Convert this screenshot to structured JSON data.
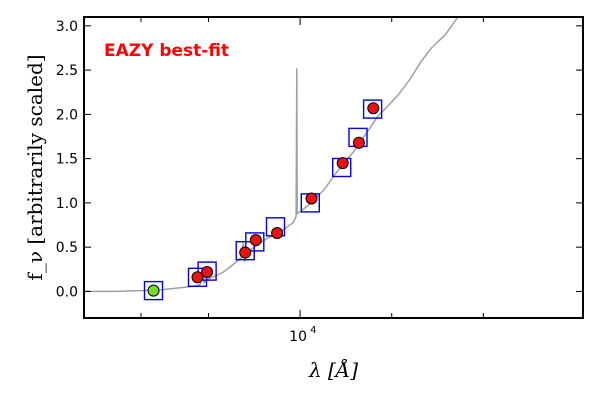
{
  "chart_data": {
    "type": "scatter",
    "title": "",
    "xlabel": "λ [Å]",
    "ylabel": "f_ν [arbitrarily scaled]",
    "x_scale": "log",
    "xlim": [
      1950,
      85000
    ],
    "ylim": [
      -0.3,
      3.1
    ],
    "grid": false,
    "yticks": [
      0.0,
      0.5,
      1.0,
      1.5,
      2.0,
      2.5,
      3.0
    ],
    "ytick_labels": [
      "0.0",
      "0.5",
      "1.0",
      "1.5",
      "2.0",
      "2.5",
      "3.0"
    ],
    "xtick_major": [
      10000
    ],
    "xtick_major_labels": [
      "10"
    ],
    "xtick_major_exponent": "4",
    "xtick_minor": [
      3000,
      5000,
      20000,
      40000
    ],
    "annotation": {
      "text": "EAZY best-fit",
      "color": "#ff0000"
    },
    "colors": {
      "sed_line": "#a0a0a0",
      "model_box": "#0000dd",
      "observed_point": "#ee1111",
      "uv_point": "#77dd22"
    },
    "series": [
      {
        "kind": "line",
        "points": [
          [
            1950,
            0.0
          ],
          [
            2500,
            0.0
          ],
          [
            3000,
            0.01
          ],
          [
            3500,
            0.02
          ],
          [
            4000,
            0.04
          ],
          [
            4500,
            0.06
          ],
          [
            4700,
            0.08
          ],
          [
            4800,
            0.25
          ],
          [
            4830,
            0.1
          ],
          [
            5000,
            0.14
          ],
          [
            5300,
            0.18
          ],
          [
            5600,
            0.22
          ],
          [
            6000,
            0.3
          ],
          [
            6400,
            0.38
          ],
          [
            6500,
            0.55
          ],
          [
            6560,
            0.35
          ],
          [
            6800,
            0.46
          ],
          [
            7200,
            0.52
          ],
          [
            7800,
            0.6
          ],
          [
            8500,
            0.66
          ],
          [
            9000,
            0.72
          ],
          [
            9500,
            0.78
          ],
          [
            9700,
            0.85
          ],
          [
            9750,
            2.52
          ],
          [
            9780,
            0.88
          ],
          [
            10000,
            0.9
          ],
          [
            10500,
            0.96
          ],
          [
            11000,
            1.02
          ],
          [
            12000,
            1.15
          ],
          [
            13000,
            1.32
          ],
          [
            14000,
            1.46
          ],
          [
            15000,
            1.58
          ],
          [
            16000,
            1.72
          ],
          [
            17000,
            1.85
          ],
          [
            18000,
            1.98
          ],
          [
            19500,
            2.1
          ],
          [
            21000,
            2.22
          ],
          [
            23000,
            2.4
          ],
          [
            25000,
            2.6
          ],
          [
            27000,
            2.75
          ],
          [
            30000,
            2.9
          ],
          [
            33000,
            3.1
          ]
        ]
      },
      {
        "kind": "model",
        "points": [
          [
            3300,
            0.01
          ],
          [
            4600,
            0.16
          ],
          [
            4950,
            0.23
          ],
          [
            6600,
            0.46
          ],
          [
            7100,
            0.56
          ],
          [
            8300,
            0.73
          ],
          [
            10800,
            1.0
          ],
          [
            13700,
            1.4
          ],
          [
            15500,
            1.74
          ],
          [
            17300,
            2.06
          ]
        ]
      },
      {
        "kind": "observed",
        "points": [
          [
            4600,
            0.16
          ],
          [
            4950,
            0.22
          ],
          [
            6600,
            0.44
          ],
          [
            7150,
            0.58
          ],
          [
            8400,
            0.66
          ],
          [
            10900,
            1.05
          ],
          [
            13800,
            1.45
          ],
          [
            15600,
            1.68
          ],
          [
            17400,
            2.07
          ]
        ]
      },
      {
        "kind": "uv",
        "points": [
          [
            3300,
            0.01
          ]
        ]
      }
    ]
  }
}
